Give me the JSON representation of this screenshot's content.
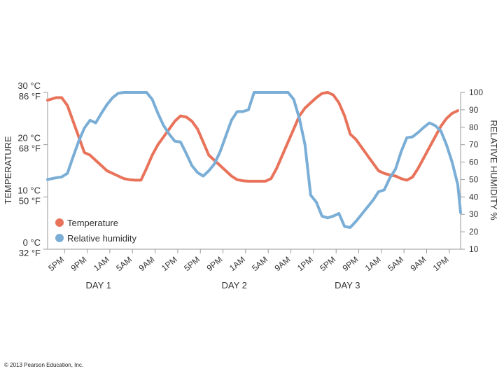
{
  "chart_data": {
    "type": "line",
    "title": "",
    "ylabel_left": "TEMPERATURE",
    "ylabel_right": "RELATIVE HUMIDITY %",
    "left_ticks": [
      {
        "c": "0 °C",
        "f": "32 °F",
        "value": 0
      },
      {
        "c": "10 °C",
        "f": "50 °F",
        "value": 10
      },
      {
        "c": "20 °C",
        "f": "68 °F",
        "value": 20
      },
      {
        "c": "30 °C",
        "f": "86 °F",
        "value": 30
      }
    ],
    "ylim_left": [
      0,
      30
    ],
    "right_ticks": [
      10,
      20,
      30,
      40,
      50,
      60,
      70,
      80,
      90,
      100
    ],
    "ylim_right": [
      10,
      100
    ],
    "x_tick_labels": [
      "5PM",
      "9PM",
      "1AM",
      "5AM",
      "9AM",
      "1PM",
      "5PM",
      "9PM",
      "1AM",
      "5AM",
      "9AM",
      "1PM",
      "5PM",
      "9PM",
      "1AM",
      "5AM",
      "9AM",
      "1PM"
    ],
    "x_tick_hours": [
      0,
      4,
      8,
      12,
      16,
      20,
      24,
      28,
      32,
      36,
      40,
      44,
      48,
      52,
      56,
      60,
      64,
      68
    ],
    "xlim_hours": [
      -3,
      70
    ],
    "day_labels": [
      {
        "label": "DAY 1",
        "hour": 6
      },
      {
        "label": "DAY 2",
        "hour": 30
      },
      {
        "label": "DAY 3",
        "hour": 50
      }
    ],
    "legend": [
      "Temperature",
      "Relative humidity"
    ],
    "series": [
      {
        "name": "Temperature",
        "unit": "°C",
        "axis": "left",
        "color": "#e8735a",
        "points": [
          [
            -3,
            28.5
          ],
          [
            -1.5,
            29
          ],
          [
            -0.5,
            29
          ],
          [
            0.5,
            27.5
          ],
          [
            1.5,
            24.5
          ],
          [
            2.5,
            21.5
          ],
          [
            3.5,
            18.5
          ],
          [
            4.5,
            18
          ],
          [
            5.5,
            17
          ],
          [
            6.5,
            16
          ],
          [
            7.5,
            15
          ],
          [
            8.5,
            14.5
          ],
          [
            9.5,
            14
          ],
          [
            10.5,
            13.5
          ],
          [
            11.5,
            13.3
          ],
          [
            12.5,
            13.2
          ],
          [
            13.5,
            13.2
          ],
          [
            14.5,
            15.5
          ],
          [
            15.5,
            18
          ],
          [
            16.5,
            20
          ],
          [
            17.5,
            21.5
          ],
          [
            18.5,
            23
          ],
          [
            19.5,
            24.5
          ],
          [
            20.5,
            25.5
          ],
          [
            21.5,
            25.3
          ],
          [
            22.5,
            24.5
          ],
          [
            23.5,
            23
          ],
          [
            24.5,
            20.5
          ],
          [
            25.5,
            18
          ],
          [
            26.5,
            17
          ],
          [
            27.5,
            16
          ],
          [
            28.5,
            15
          ],
          [
            29.5,
            14
          ],
          [
            30.5,
            13.3
          ],
          [
            31.5,
            13.1
          ],
          [
            32.5,
            13
          ],
          [
            34.5,
            13
          ],
          [
            35.5,
            13
          ],
          [
            36.5,
            13.5
          ],
          [
            37.5,
            15.5
          ],
          [
            38.5,
            18
          ],
          [
            39.5,
            20.5
          ],
          [
            40.5,
            23
          ],
          [
            41.5,
            25.5
          ],
          [
            42.5,
            27
          ],
          [
            43.5,
            28
          ],
          [
            44.5,
            29
          ],
          [
            45.5,
            29.8
          ],
          [
            46.5,
            30
          ],
          [
            47.5,
            29.5
          ],
          [
            48.5,
            28
          ],
          [
            49.5,
            25.5
          ],
          [
            50.5,
            22
          ],
          [
            51.5,
            21
          ],
          [
            52.5,
            19.5
          ],
          [
            53.5,
            18
          ],
          [
            54.5,
            16.5
          ],
          [
            55.5,
            15
          ],
          [
            56.5,
            14.5
          ],
          [
            57.5,
            14.2
          ],
          [
            58.5,
            14
          ],
          [
            59.5,
            13.5
          ],
          [
            60.5,
            13.2
          ],
          [
            61.5,
            13.8
          ],
          [
            62.5,
            15.5
          ],
          [
            63.5,
            17.5
          ],
          [
            64.5,
            19.5
          ],
          [
            65.5,
            21.5
          ],
          [
            66.5,
            23.5
          ],
          [
            67.5,
            25
          ],
          [
            68.5,
            26
          ],
          [
            69.5,
            26.5
          ]
        ]
      },
      {
        "name": "Relative humidity",
        "unit": "%",
        "axis": "right",
        "color": "#7aaed6",
        "points": [
          [
            -3,
            50
          ],
          [
            -1.5,
            51
          ],
          [
            -0.5,
            51.5
          ],
          [
            0.5,
            53.5
          ],
          [
            1.5,
            63
          ],
          [
            2.5,
            72
          ],
          [
            3.5,
            79.5
          ],
          [
            4.5,
            84
          ],
          [
            5.5,
            82.5
          ],
          [
            6.5,
            88
          ],
          [
            7.5,
            93
          ],
          [
            8.5,
            97
          ],
          [
            9.5,
            99.5
          ],
          [
            10.5,
            100
          ],
          [
            14.5,
            100
          ],
          [
            15.5,
            96
          ],
          [
            16.5,
            88
          ],
          [
            17.5,
            81
          ],
          [
            18.5,
            76
          ],
          [
            19.5,
            72
          ],
          [
            20.5,
            71.5
          ],
          [
            21.5,
            65
          ],
          [
            22.5,
            58
          ],
          [
            23.5,
            54
          ],
          [
            24.5,
            52
          ],
          [
            25.5,
            55
          ],
          [
            26.5,
            59
          ],
          [
            27.5,
            66
          ],
          [
            28.5,
            75
          ],
          [
            29.5,
            84
          ],
          [
            30.5,
            89
          ],
          [
            31.5,
            89
          ],
          [
            32.5,
            90
          ],
          [
            33.5,
            100
          ],
          [
            39.5,
            100
          ],
          [
            40.5,
            96
          ],
          [
            41.5,
            85
          ],
          [
            42.5,
            70
          ],
          [
            43.5,
            41
          ],
          [
            44.5,
            37
          ],
          [
            45.5,
            29
          ],
          [
            46.5,
            28
          ],
          [
            47.5,
            29
          ],
          [
            48.5,
            30.5
          ],
          [
            49.5,
            23
          ],
          [
            50.5,
            22.5
          ],
          [
            51.5,
            26
          ],
          [
            52.5,
            30
          ],
          [
            53.5,
            34
          ],
          [
            54.5,
            38
          ],
          [
            55.5,
            43
          ],
          [
            56.5,
            44
          ],
          [
            57.5,
            51
          ],
          [
            58.5,
            56
          ],
          [
            59.5,
            66
          ],
          [
            60.5,
            74
          ],
          [
            61.5,
            74.5
          ],
          [
            62.5,
            77
          ],
          [
            63.5,
            80
          ],
          [
            64.5,
            82.5
          ],
          [
            65.5,
            81
          ],
          [
            66.5,
            78
          ],
          [
            67.5,
            70
          ],
          [
            68.5,
            60
          ],
          [
            69.5,
            47
          ],
          [
            70,
            31
          ]
        ]
      }
    ]
  },
  "copyright": "© 2013 Pearson Education, Inc."
}
